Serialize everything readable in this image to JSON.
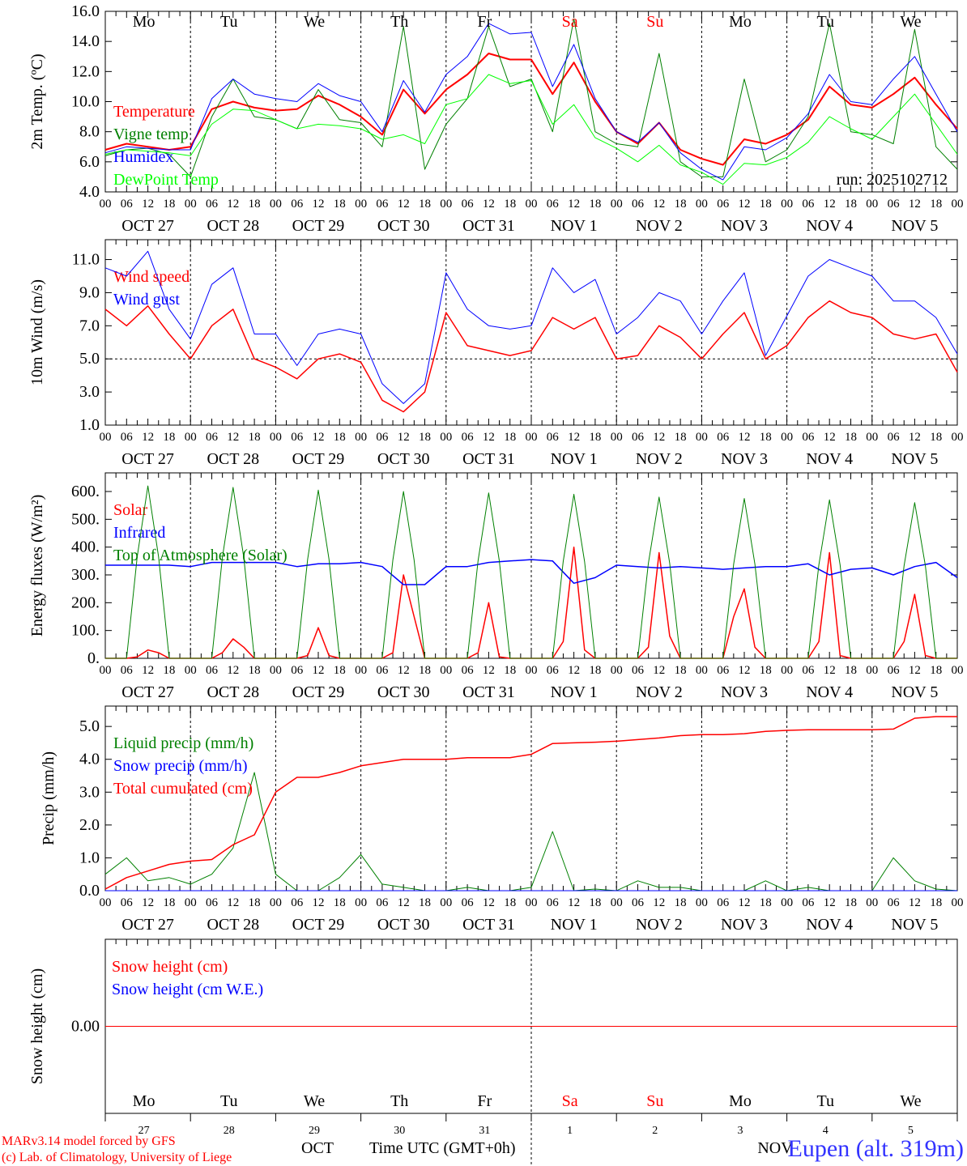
{
  "x_axis": {
    "start": "2025-10-27 00 UTC",
    "span_hours": 240,
    "hour_labels": [
      "00",
      "06",
      "12",
      "18"
    ],
    "date_labels": [
      "OCT 27",
      "OCT 28",
      "OCT 29",
      "OCT 30",
      "OCT 31",
      "NOV  1",
      "NOV  2",
      "NOV  3",
      "NOV  4",
      "NOV  5"
    ],
    "weekdays": [
      "Mo",
      "Tu",
      "We",
      "Th",
      "Fr",
      "Sa",
      "Su",
      "Mo",
      "Tu",
      "We"
    ],
    "weekend_flags": [
      false,
      false,
      false,
      false,
      false,
      true,
      true,
      false,
      false,
      false
    ],
    "day_numbers": [
      "27",
      "28",
      "29",
      "30",
      "31",
      "1",
      "2",
      "3",
      "4",
      "5"
    ],
    "month_labels": [
      "OCT",
      "NOV"
    ],
    "title": "Time UTC (GMT+0h)"
  },
  "run_label": "run: 2025102712",
  "footer": {
    "credit1": "MARv3.14 model forced by GFS",
    "credit2": "(c) Lab. of Climatology, University of Liege",
    "location": "Eupen (alt. 319m)"
  },
  "colors": {
    "red": "#ff0000",
    "green": "#008000",
    "blue": "#0000ff",
    "lightgreen": "#00ff00",
    "weekend": "#ff0000"
  },
  "chart_data": [
    {
      "type": "line",
      "ylabel": "2m Temp. (ºC)",
      "ylim": [
        4,
        16
      ],
      "yticks": [
        4,
        6,
        8,
        10,
        12,
        14,
        16
      ],
      "ytick_labels": [
        "4.0",
        "6.0",
        "8.0",
        "10.0",
        "12.0",
        "14.0",
        "16.0"
      ],
      "series": [
        {
          "name": "Temperature",
          "color": "#ff0000",
          "step_hours": 6,
          "width": 2,
          "values": [
            6.8,
            7.2,
            7.0,
            6.8,
            7.0,
            9.5,
            10.0,
            9.6,
            9.4,
            9.5,
            10.4,
            9.8,
            9.0,
            7.8,
            10.8,
            9.2,
            10.8,
            11.8,
            13.2,
            12.8,
            12.8,
            10.5,
            12.6,
            10.0,
            8.0,
            7.2,
            8.6,
            6.8,
            6.2,
            5.8,
            7.5,
            7.2,
            7.8,
            8.8,
            11.0,
            9.8,
            9.6,
            10.5,
            11.6,
            9.8,
            8.2
          ]
        },
        {
          "name": "Vigne temp",
          "color": "#008000",
          "step_hours": 6,
          "width": 1,
          "values": [
            6.4,
            6.8,
            6.9,
            6.5,
            5.0,
            9.0,
            11.5,
            9.0,
            8.8,
            8.2,
            10.8,
            8.8,
            8.6,
            7.0,
            15.0,
            5.5,
            8.5,
            10.2,
            15.0,
            11.0,
            11.5,
            8.0,
            15.5,
            8.0,
            7.2,
            7.0,
            13.2,
            6.0,
            5.0,
            5.0,
            11.5,
            6.0,
            6.8,
            9.0,
            15.2,
            8.0,
            7.8,
            7.2,
            14.8,
            7.0,
            5.5
          ]
        },
        {
          "name": "Humidex",
          "color": "#0000ff",
          "step_hours": 6,
          "width": 1,
          "values": [
            6.6,
            7.0,
            6.9,
            6.8,
            6.8,
            10.2,
            11.5,
            10.5,
            10.2,
            10.0,
            11.2,
            10.4,
            10.0,
            8.0,
            11.4,
            9.3,
            11.8,
            13.0,
            15.2,
            14.5,
            14.6,
            11.0,
            13.8,
            10.2,
            8.0,
            7.3,
            8.6,
            6.6,
            5.5,
            4.8,
            7.0,
            6.8,
            7.6,
            9.2,
            11.8,
            10.0,
            9.8,
            11.5,
            13.0,
            10.5,
            8.0
          ]
        },
        {
          "name": "DewPoint Temp",
          "color": "#00ff00",
          "step_hours": 6,
          "width": 1,
          "values": [
            6.5,
            6.8,
            6.7,
            6.6,
            6.4,
            8.5,
            9.5,
            9.4,
            8.8,
            8.2,
            8.5,
            8.4,
            8.2,
            7.5,
            7.8,
            7.2,
            9.8,
            10.2,
            11.8,
            11.2,
            11.4,
            8.5,
            9.8,
            7.6,
            6.9,
            6.0,
            7.1,
            5.8,
            5.3,
            4.5,
            5.9,
            5.8,
            6.3,
            7.3,
            9.0,
            8.2,
            7.5,
            9.0,
            10.5,
            8.5,
            6.5
          ]
        }
      ]
    },
    {
      "type": "line",
      "ylabel": "10m Wind (m/s)",
      "ylim": [
        1,
        12.2
      ],
      "yticks": [
        1,
        3,
        5,
        7,
        9,
        11
      ],
      "ytick_labels": [
        "1.0",
        "3.0",
        "5.0",
        "7.0",
        "9.0",
        "11.0"
      ],
      "reference_line": 5,
      "series": [
        {
          "name": "Wind speed",
          "color": "#ff0000",
          "step_hours": 6,
          "width": 1.5,
          "values": [
            8.0,
            7.0,
            8.2,
            6.5,
            5.0,
            7.0,
            8.0,
            5.0,
            4.5,
            3.8,
            5.0,
            5.3,
            4.8,
            2.5,
            1.8,
            3.0,
            7.8,
            5.8,
            5.5,
            5.2,
            5.5,
            7.5,
            6.8,
            7.5,
            5.0,
            5.2,
            7.0,
            6.3,
            5.0,
            6.5,
            7.8,
            5.0,
            5.8,
            7.5,
            8.5,
            7.8,
            7.5,
            6.5,
            6.2,
            6.5,
            4.2
          ]
        },
        {
          "name": "Wind gust",
          "color": "#0000ff",
          "step_hours": 6,
          "width": 1,
          "values": [
            10.5,
            10.0,
            11.5,
            8.0,
            6.2,
            9.5,
            10.5,
            6.5,
            6.5,
            4.6,
            6.5,
            6.8,
            6.5,
            3.5,
            2.3,
            3.5,
            10.2,
            8.0,
            7.0,
            6.8,
            7.0,
            10.5,
            9.0,
            9.8,
            6.5,
            7.5,
            9.0,
            8.5,
            6.5,
            8.5,
            10.2,
            5.2,
            7.6,
            10.0,
            11.0,
            10.5,
            10.0,
            8.5,
            8.5,
            7.5,
            5.3
          ]
        }
      ]
    },
    {
      "type": "line",
      "ylabel": "Energy fluxes (W/m²)",
      "ylim": [
        0,
        667
      ],
      "yticks": [
        0,
        100,
        200,
        300,
        400,
        500,
        600
      ],
      "ytick_labels": [
        "0.",
        "100.",
        "200.",
        "300.",
        "400.",
        "500.",
        "600."
      ],
      "series": [
        {
          "name": "Solar",
          "color": "#ff0000",
          "step_hours": 3,
          "width": 1.5,
          "values": [
            0,
            0,
            0,
            5,
            30,
            20,
            0,
            0,
            0,
            0,
            0,
            20,
            70,
            40,
            0,
            0,
            0,
            0,
            0,
            10,
            110,
            10,
            0,
            0,
            0,
            0,
            0,
            20,
            300,
            150,
            0,
            0,
            0,
            0,
            0,
            20,
            200,
            5,
            0,
            0,
            0,
            0,
            0,
            60,
            400,
            30,
            0,
            0,
            0,
            0,
            0,
            40,
            380,
            80,
            0,
            0,
            0,
            0,
            0,
            150,
            250,
            40,
            0,
            0,
            0,
            0,
            0,
            60,
            380,
            10,
            0,
            0,
            0,
            0,
            0,
            60,
            230,
            10,
            0,
            0,
            0
          ]
        },
        {
          "name": "Infrared",
          "color": "#0000ff",
          "step_hours": 6,
          "width": 1.5,
          "values": [
            335,
            335,
            335,
            335,
            330,
            345,
            345,
            345,
            345,
            330,
            340,
            340,
            345,
            330,
            265,
            265,
            330,
            330,
            345,
            350,
            355,
            350,
            270,
            290,
            335,
            330,
            325,
            330,
            325,
            320,
            325,
            330,
            330,
            340,
            300,
            320,
            325,
            300,
            330,
            345,
            290
          ]
        },
        {
          "name": "Top of Atmosphere (Solar)",
          "color": "#008000",
          "step_hours": 3,
          "width": 1,
          "values": [
            0,
            0,
            0,
            365,
            620,
            365,
            0,
            0,
            0,
            0,
            0,
            363,
            615,
            363,
            0,
            0,
            0,
            0,
            0,
            357,
            605,
            357,
            0,
            0,
            0,
            0,
            0,
            354,
            600,
            354,
            0,
            0,
            0,
            0,
            0,
            351,
            595,
            351,
            0,
            0,
            0,
            0,
            0,
            348,
            590,
            348,
            0,
            0,
            0,
            0,
            0,
            342,
            580,
            342,
            0,
            0,
            0,
            0,
            0,
            339,
            575,
            339,
            0,
            0,
            0,
            0,
            0,
            336,
            570,
            336,
            0,
            0,
            0,
            0,
            0,
            333,
            560,
            333,
            0,
            0,
            0
          ]
        }
      ]
    },
    {
      "type": "line",
      "ylabel": "Precip (mm/h)",
      "ylim": [
        0,
        5.62
      ],
      "yticks": [
        0,
        1,
        2,
        3,
        4,
        5
      ],
      "ytick_labels": [
        "0.0",
        "1.0",
        "2.0",
        "3.0",
        "4.0",
        "5.0"
      ],
      "series": [
        {
          "name": "Liquid precip (mm/h)",
          "color": "#008000",
          "step_hours": 6,
          "width": 1,
          "values": [
            0.5,
            1.0,
            0.3,
            0.4,
            0.2,
            0.5,
            1.3,
            3.6,
            0.5,
            0.0,
            0.0,
            0.4,
            1.1,
            0.2,
            0.1,
            0.0,
            0.0,
            0.1,
            0.0,
            0.0,
            0.1,
            1.8,
            0.0,
            0.05,
            0.0,
            0.3,
            0.1,
            0.1,
            0.0,
            0.0,
            0.0,
            0.3,
            0.0,
            0.1,
            0.0,
            0.0,
            0.0,
            1.0,
            0.3,
            0.05,
            0.0
          ]
        },
        {
          "name": "Snow precip (mm/h)",
          "color": "#0000ff",
          "step_hours": 6,
          "width": 1,
          "values": [
            0,
            0,
            0,
            0,
            0,
            0,
            0,
            0,
            0,
            0,
            0,
            0,
            0,
            0,
            0,
            0,
            0,
            0,
            0,
            0,
            0,
            0,
            0,
            0,
            0,
            0,
            0,
            0,
            0,
            0,
            0,
            0,
            0,
            0,
            0,
            0,
            0,
            0,
            0,
            0,
            0
          ]
        },
        {
          "name": "Total cumulated (cm)",
          "color": "#ff0000",
          "step_hours": 6,
          "width": 1.5,
          "values": [
            0.05,
            0.4,
            0.6,
            0.8,
            0.9,
            0.95,
            1.4,
            1.7,
            3.0,
            3.45,
            3.45,
            3.6,
            3.8,
            3.9,
            4.0,
            4.0,
            4.0,
            4.05,
            4.05,
            4.05,
            4.15,
            4.48,
            4.5,
            4.52,
            4.55,
            4.6,
            4.65,
            4.72,
            4.75,
            4.75,
            4.78,
            4.85,
            4.88,
            4.9,
            4.9,
            4.9,
            4.9,
            4.92,
            5.25,
            5.3,
            5.3
          ]
        }
      ]
    },
    {
      "type": "line",
      "ylabel": "Snow height (cm)",
      "ylim": [
        -1,
        1
      ],
      "yticks": [
        0
      ],
      "ytick_labels": [
        "0.00"
      ],
      "series": [
        {
          "name": "Snow height (cm)",
          "color": "#ff0000",
          "step_hours": 240,
          "width": 1,
          "values": [
            0,
            0
          ]
        },
        {
          "name": "Snow height (cm W.E.)",
          "color": "#0000ff",
          "step_hours": 240,
          "width": 0,
          "values": [
            0,
            0
          ]
        }
      ]
    }
  ]
}
